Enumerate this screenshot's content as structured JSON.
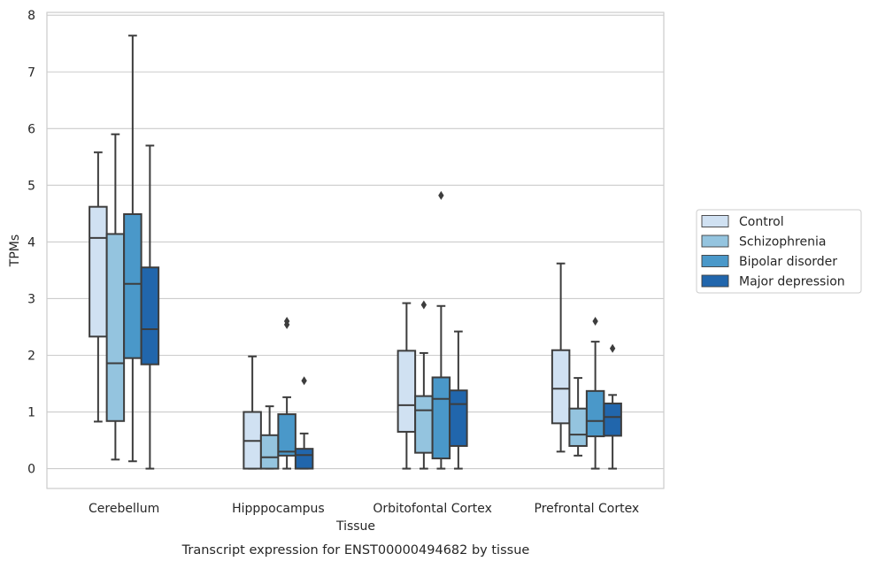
{
  "chart_data": {
    "type": "box",
    "title": "",
    "caption": "Transcript expression for ENST00000494682 by tissue",
    "xlabel": "Tissue",
    "ylabel": "TPMs",
    "ylim": [
      -0.35,
      8.05
    ],
    "yticks": [
      0,
      1,
      2,
      3,
      4,
      5,
      6,
      7,
      8
    ],
    "grid": "horizontal",
    "legend_position": "right",
    "categories": [
      "Cerebellum",
      "Hipppocampus",
      "Orbitofontal Cortex",
      "Prefrontal Cortex"
    ],
    "series": [
      {
        "name": "Control",
        "color": "#d0e1f2",
        "boxes": [
          {
            "min": 0.83,
            "q1": 2.33,
            "median": 4.07,
            "q3": 4.62,
            "max": 5.58,
            "outliers": []
          },
          {
            "min": 0.0,
            "q1": 0.0,
            "median": 0.49,
            "q3": 1.0,
            "max": 1.98,
            "outliers": []
          },
          {
            "min": 0.0,
            "q1": 0.65,
            "median": 1.12,
            "q3": 2.08,
            "max": 2.92,
            "outliers": []
          },
          {
            "min": 0.3,
            "q1": 0.8,
            "median": 1.41,
            "q3": 2.09,
            "max": 3.62,
            "outliers": []
          }
        ]
      },
      {
        "name": "Schizophrenia",
        "color": "#94c4df",
        "boxes": [
          {
            "min": 0.16,
            "q1": 0.84,
            "median": 1.86,
            "q3": 4.14,
            "max": 5.9,
            "outliers": []
          },
          {
            "min": 0.0,
            "q1": 0.0,
            "median": 0.2,
            "q3": 0.59,
            "max": 1.1,
            "outliers": []
          },
          {
            "min": 0.0,
            "q1": 0.28,
            "median": 1.03,
            "q3": 1.28,
            "max": 2.04,
            "outliers": [
              2.89
            ]
          },
          {
            "min": 0.23,
            "q1": 0.4,
            "median": 0.6,
            "q3": 1.06,
            "max": 1.6,
            "outliers": []
          }
        ]
      },
      {
        "name": "Bipolar disorder",
        "color": "#4a98c9",
        "boxes": [
          {
            "min": 0.13,
            "q1": 1.95,
            "median": 3.26,
            "q3": 4.49,
            "max": 7.64,
            "outliers": []
          },
          {
            "min": 0.0,
            "q1": 0.23,
            "median": 0.3,
            "q3": 0.96,
            "max": 1.26,
            "outliers": [
              2.54,
              2.6
            ]
          },
          {
            "min": 0.0,
            "q1": 0.18,
            "median": 1.23,
            "q3": 1.61,
            "max": 2.87,
            "outliers": [
              4.82
            ]
          },
          {
            "min": 0.0,
            "q1": 0.57,
            "median": 0.84,
            "q3": 1.37,
            "max": 2.24,
            "outliers": [
              2.6
            ]
          }
        ]
      },
      {
        "name": "Major depression",
        "color": "#2166ac",
        "boxes": [
          {
            "min": 0.0,
            "q1": 1.84,
            "median": 2.46,
            "q3": 3.55,
            "max": 5.7,
            "outliers": []
          },
          {
            "min": 0.0,
            "q1": 0.0,
            "median": 0.24,
            "q3": 0.35,
            "max": 0.62,
            "outliers": [
              1.55
            ]
          },
          {
            "min": 0.0,
            "q1": 0.4,
            "median": 1.14,
            "q3": 1.38,
            "max": 2.42,
            "outliers": []
          },
          {
            "min": 0.0,
            "q1": 0.58,
            "median": 0.91,
            "q3": 1.15,
            "max": 1.3,
            "outliers": [
              2.12
            ]
          }
        ]
      }
    ]
  }
}
